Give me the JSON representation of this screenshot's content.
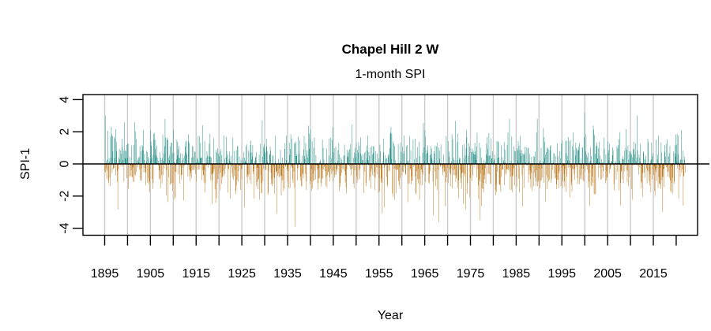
{
  "chart_data": {
    "type": "bar",
    "title": "Chapel Hill 2 W",
    "subtitle": "1-month SPI",
    "xlabel": "Year",
    "ylabel": "SPI-1",
    "x_start": 1895.0,
    "x_end": 2021.92,
    "points_per_year": 12,
    "n_points": 1524,
    "xlim": [
      1890.3,
      2024.6
    ],
    "ylim": [
      -4.4,
      4.35
    ],
    "ytick_labels": [
      "4",
      "2",
      "0",
      "-2",
      "-4"
    ],
    "xticks": [
      1895,
      1900,
      1905,
      1910,
      1915,
      1920,
      1925,
      1930,
      1935,
      1940,
      1945,
      1950,
      1955,
      1960,
      1965,
      1970,
      1975,
      1980,
      1985,
      1990,
      1995,
      2000,
      2005,
      2010,
      2015,
      2020
    ],
    "xtick_labels": [
      "1895",
      "1905",
      "1915",
      "1925",
      "1935",
      "1945",
      "1955",
      "1965",
      "1975",
      "1985",
      "1995",
      "2005",
      "2015"
    ],
    "gridline_years": [
      1895,
      1900,
      1905,
      1910,
      1915,
      1920,
      1925,
      1930,
      1935,
      1940,
      1945,
      1950,
      1955,
      1960,
      1965,
      1970,
      1975,
      1980,
      1985,
      1990,
      1995,
      2000,
      2005,
      2010,
      2015
    ],
    "grid": "vertical",
    "legend": "none",
    "zero_line": true,
    "colors": {
      "positive": "#35978F",
      "negative": "#BF812D",
      "grid": "#CBCBCB",
      "axis": "#000000",
      "background": "#FFFFFF"
    },
    "series_generator": {
      "seed": 7,
      "spread": 1.73,
      "clamp_min": -3.55,
      "clamp_max": 3.05
    },
    "anchor_extremes": [
      [
        1895.08,
        3.0
      ],
      [
        1901.5,
        2.6
      ],
      [
        1908.2,
        2.8
      ],
      [
        1916.3,
        2.4
      ],
      [
        1925.6,
        -2.7
      ],
      [
        1929.4,
        2.7
      ],
      [
        1932.6,
        -3.1
      ],
      [
        1936.58,
        -3.9
      ],
      [
        1944.8,
        2.3
      ],
      [
        1949.1,
        2.45
      ],
      [
        1956.2,
        -2.7
      ],
      [
        1957.6,
        2.3
      ],
      [
        1966.8,
        -3.2
      ],
      [
        1968.08,
        -3.6
      ],
      [
        1977.08,
        -3.5
      ],
      [
        1983.5,
        2.8
      ],
      [
        1989.6,
        2.8
      ],
      [
        1999.92,
        3.2
      ],
      [
        2001.1,
        -2.6
      ],
      [
        2007.8,
        -2.6
      ],
      [
        2011.4,
        3.0
      ],
      [
        2016.96,
        -3.0
      ]
    ]
  }
}
